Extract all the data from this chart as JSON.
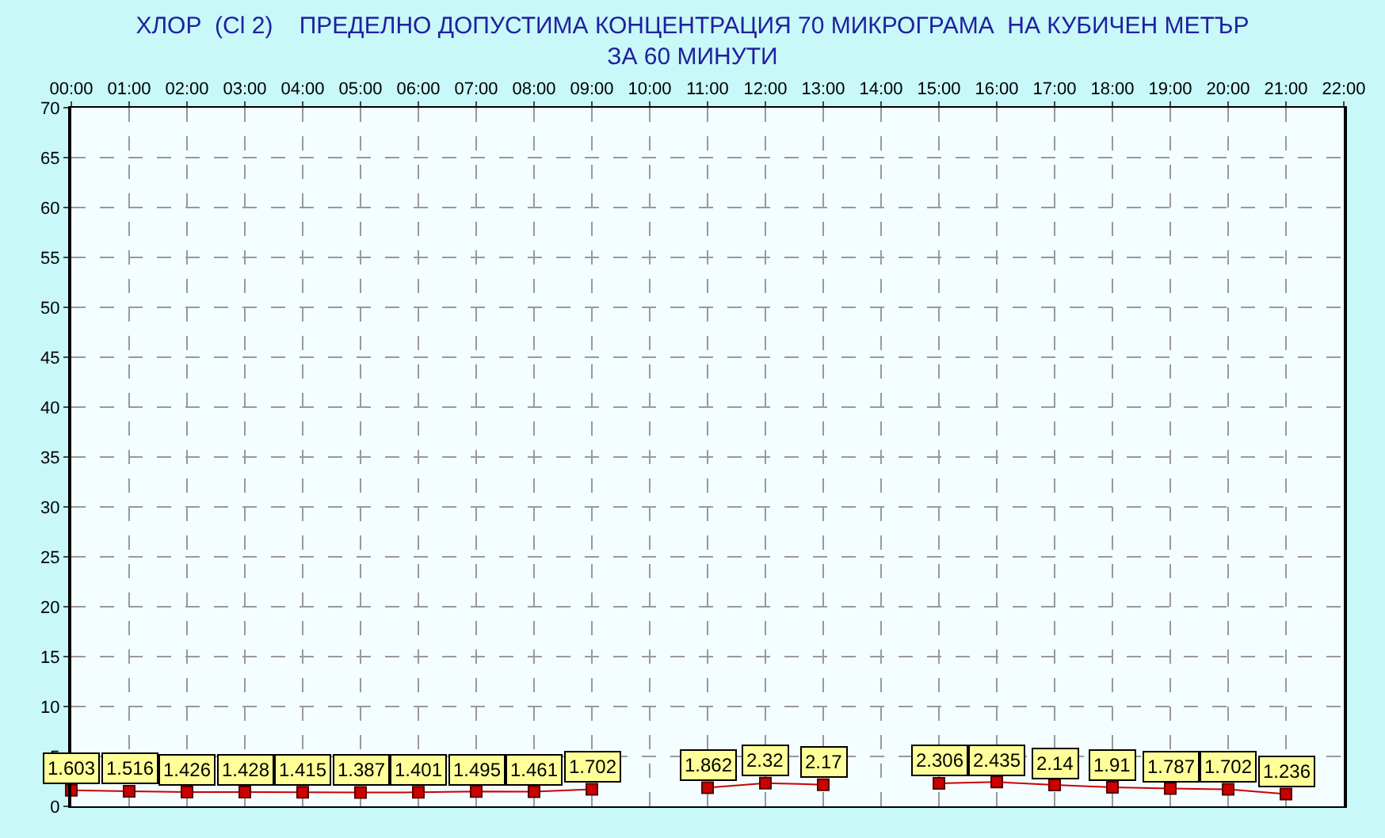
{
  "chart_data": {
    "type": "line",
    "title": "ХЛОР  (Cl 2)    ПРЕДЕЛНО ДОПУСТИМА КОНЦЕНТРАЦИЯ 70 МИКРОГРАМА  НА КУБИЧЕН МЕТЪР\nЗА 60 МИНУТИ",
    "x": [
      0,
      1,
      2,
      3,
      4,
      5,
      6,
      7,
      8,
      9,
      10,
      11,
      12,
      13,
      14,
      15,
      16,
      17,
      18,
      19,
      20,
      21
    ],
    "series": [
      {
        "color": "#cc0000",
        "values": [
          1.603,
          1.516,
          1.426,
          1.428,
          1.415,
          1.387,
          1.401,
          1.495,
          1.461,
          1.702,
          null,
          1.862,
          2.32,
          2.17,
          null,
          2.306,
          2.435,
          2.14,
          1.91,
          1.787,
          1.702,
          1.236
        ]
      }
    ],
    "xlim": [
      0,
      22
    ],
    "xticks": [
      {
        "value": 0,
        "label": "00:00"
      },
      {
        "value": 1,
        "label": "01:00"
      },
      {
        "value": 2,
        "label": "02:00"
      },
      {
        "value": 3,
        "label": "03:00"
      },
      {
        "value": 4,
        "label": "04:00"
      },
      {
        "value": 5,
        "label": "05:00"
      },
      {
        "value": 6,
        "label": "06:00"
      },
      {
        "value": 7,
        "label": "07:00"
      },
      {
        "value": 8,
        "label": "08:00"
      },
      {
        "value": 9,
        "label": "09:00"
      },
      {
        "value": 10,
        "label": "10:00"
      },
      {
        "value": 11,
        "label": "11:00"
      },
      {
        "value": 12,
        "label": "12:00"
      },
      {
        "value": 13,
        "label": "13:00"
      },
      {
        "value": 14,
        "label": "14:00"
      },
      {
        "value": 15,
        "label": "15:00"
      },
      {
        "value": 16,
        "label": "16:00"
      },
      {
        "value": 17,
        "label": "17:00"
      },
      {
        "value": 18,
        "label": "18:00"
      },
      {
        "value": 19,
        "label": "19:00"
      },
      {
        "value": 20,
        "label": "20:00"
      },
      {
        "value": 21,
        "label": "21:00"
      },
      {
        "value": 22,
        "label": "22:00"
      }
    ],
    "ylim": [
      0,
      70
    ],
    "yticks": [
      0,
      5,
      10,
      15,
      20,
      25,
      30,
      35,
      40,
      45,
      50,
      55,
      60,
      65,
      70
    ],
    "grid": true,
    "legend": false,
    "marker": "square",
    "line_style": "solid",
    "data_labels": true
  }
}
